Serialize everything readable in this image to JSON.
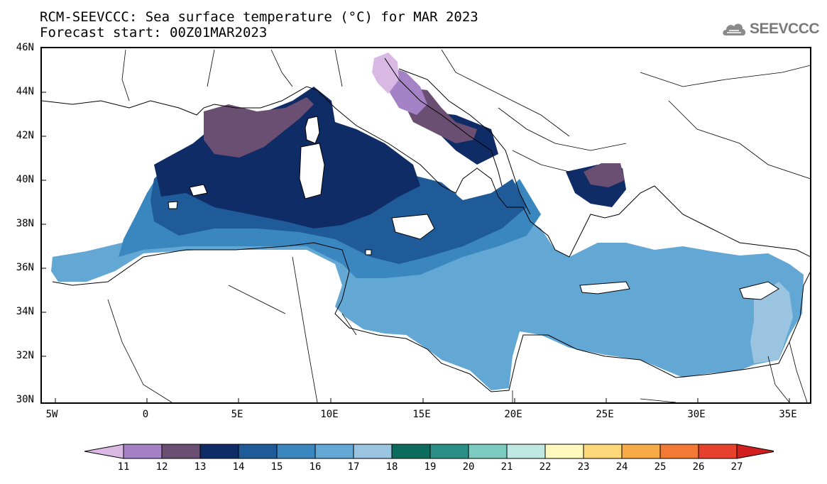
{
  "title": {
    "line1": "RCM-SEEVCCC: Sea surface temperature (°C) for MAR 2023",
    "line2": "Forecast start: 00Z01MAR2023"
  },
  "logo": {
    "text": "SEEVCCC",
    "icon": "cloud-icon"
  },
  "map": {
    "lat_labels": [
      "46N",
      "44N",
      "42N",
      "40N",
      "38N",
      "36N",
      "34N",
      "32N",
      "30N"
    ],
    "lon_labels": [
      "5W",
      "0",
      "5E",
      "10E",
      "15E",
      "20E",
      "25E",
      "30E",
      "35E"
    ],
    "extent": {
      "lon_min": -6,
      "lon_max": 36,
      "lat_min": 30,
      "lat_max": 46
    }
  },
  "colorbar": {
    "labels": [
      "11",
      "12",
      "13",
      "14",
      "15",
      "16",
      "17",
      "18",
      "19",
      "20",
      "21",
      "22",
      "23",
      "24",
      "25",
      "26",
      "27"
    ],
    "colors": [
      "#a582c6",
      "#6b4f72",
      "#0f2c66",
      "#1f5b98",
      "#3a86bf",
      "#63a7d5",
      "#9ac4e0",
      "#0b6b5c",
      "#2d9087",
      "#7ccbc0",
      "#c0e8e2",
      "#fff9bd",
      "#fdd97a",
      "#f9aa48",
      "#f27a35",
      "#e6412c"
    ],
    "low_color": "#d9b8e4",
    "high_color": "#d11f1f"
  }
}
